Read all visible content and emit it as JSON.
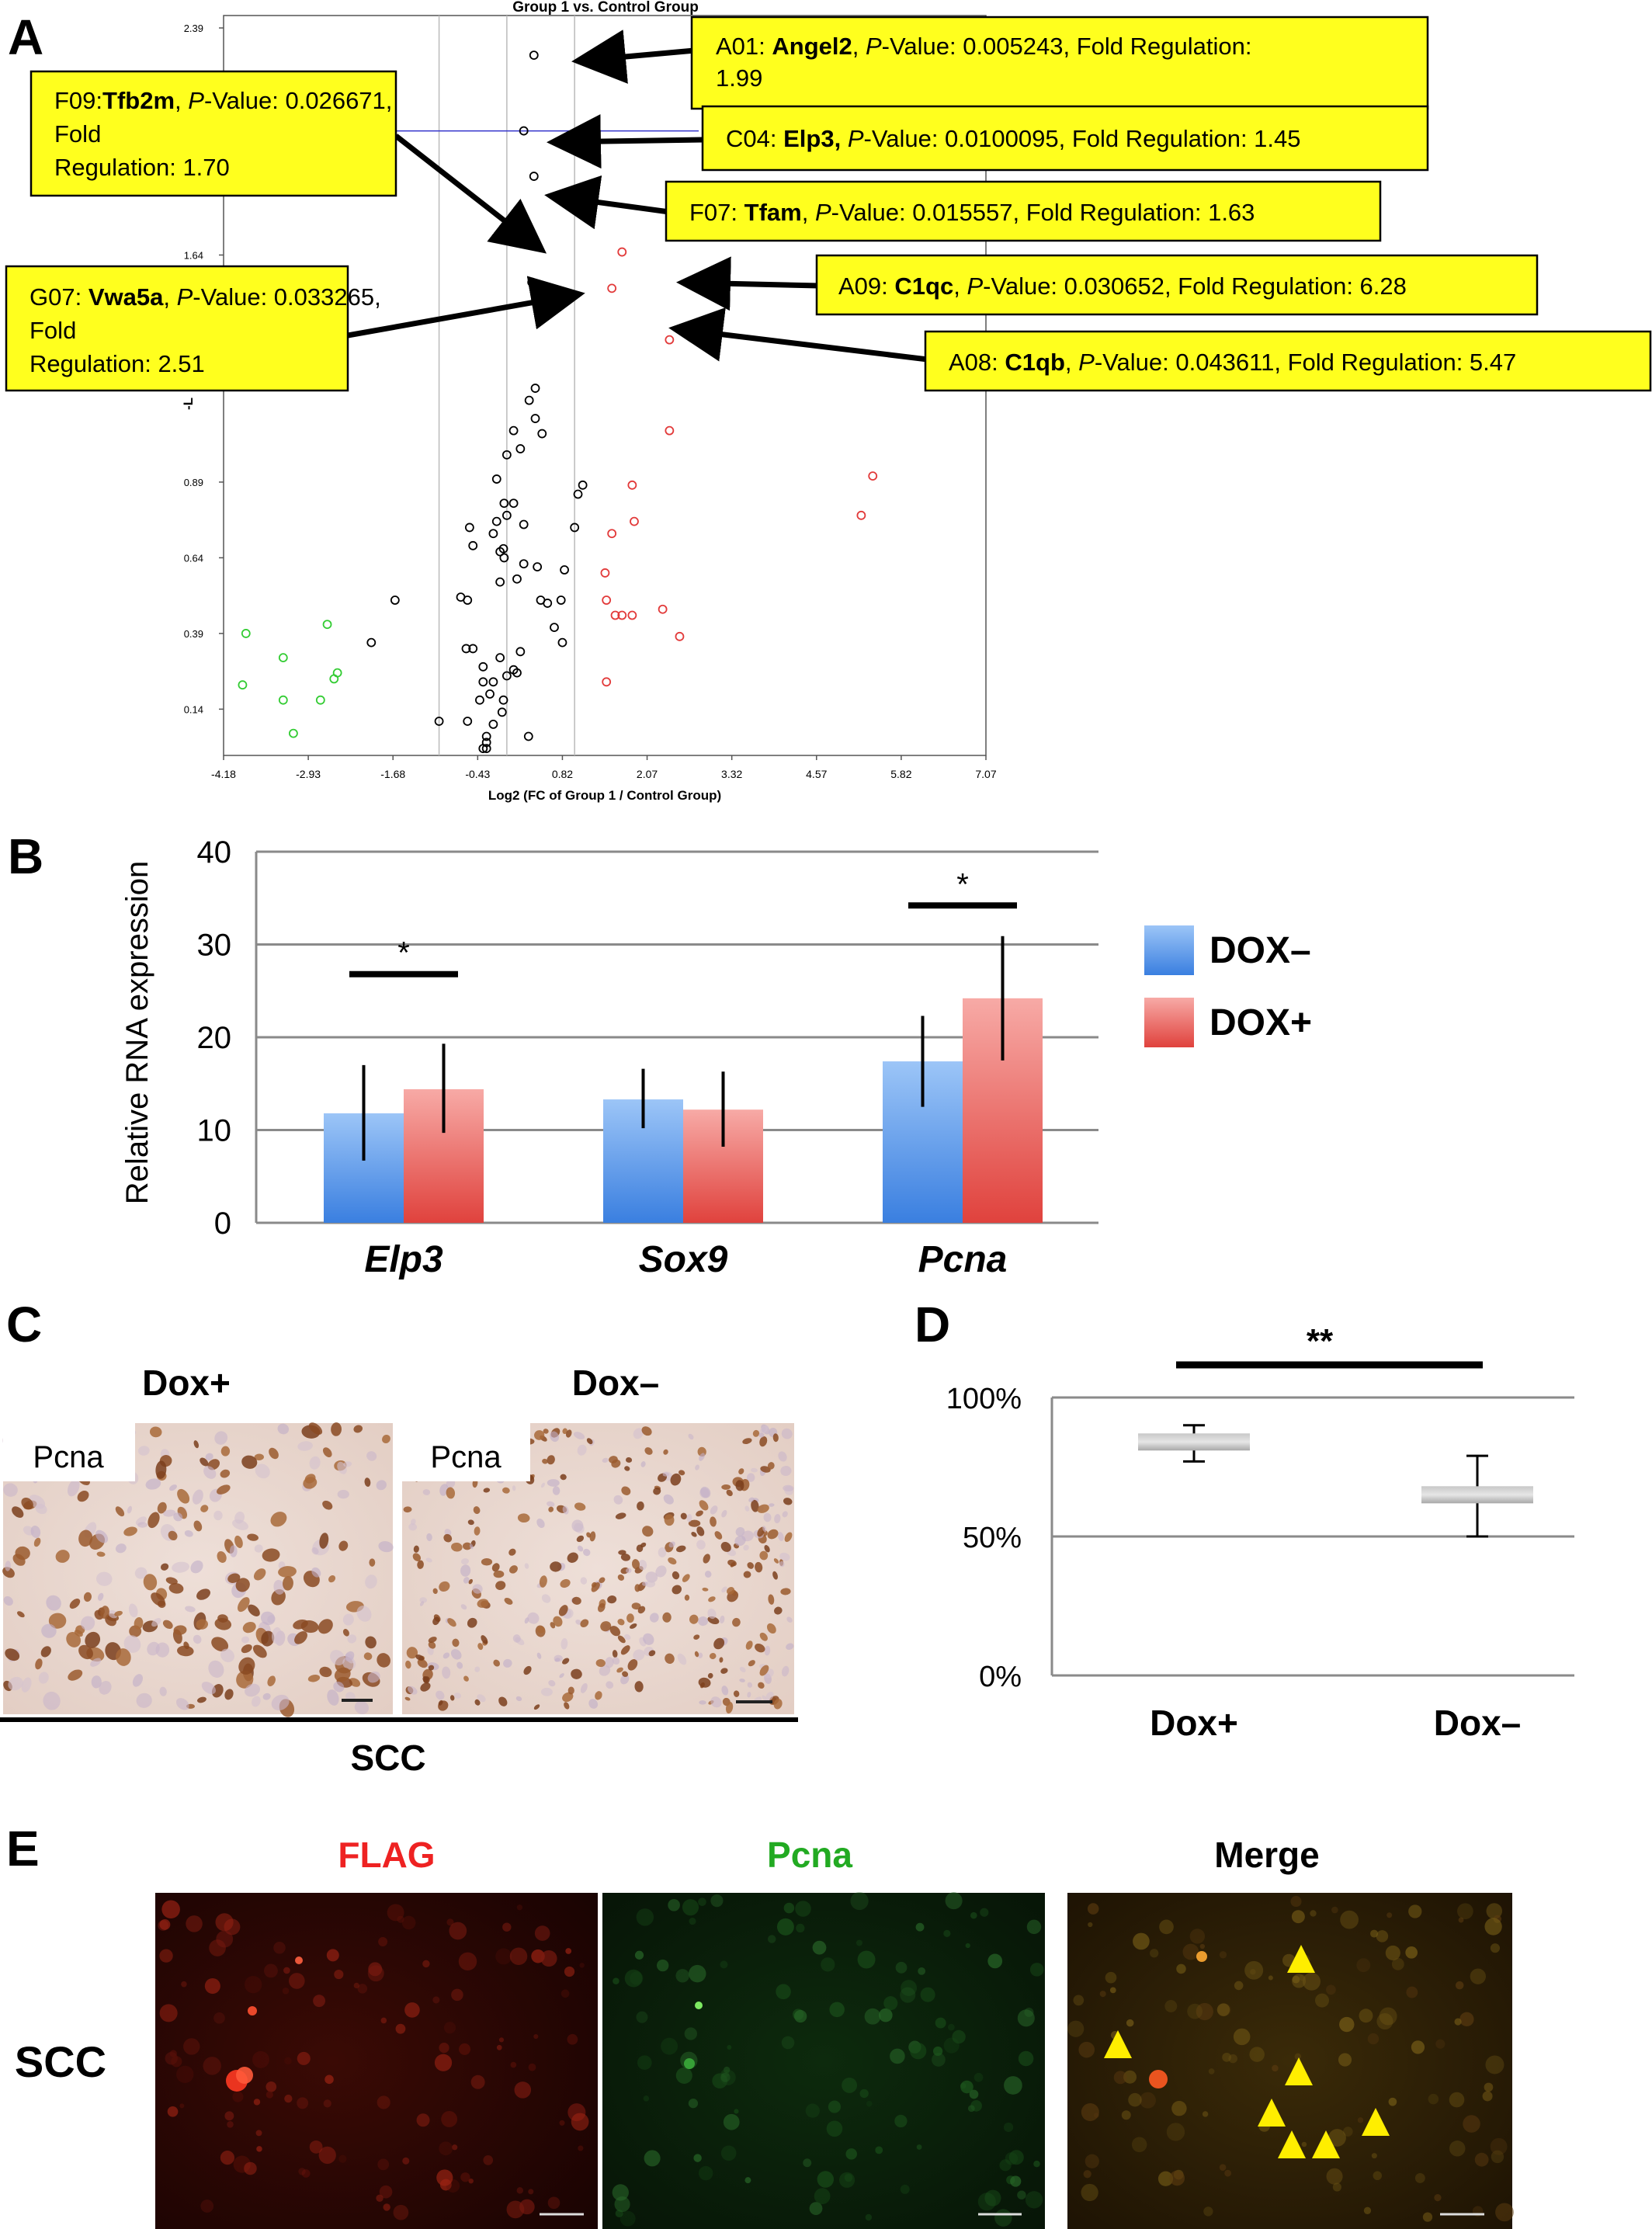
{
  "figure": {
    "panel_letters": {
      "a": "A",
      "b": "B",
      "c": "C",
      "d": "D",
      "e": "E"
    }
  },
  "chart_data": [
    {
      "panel": "A",
      "type": "scatter",
      "title": "Group 1 vs. Control Group",
      "xlabel": "Log2 (FC of Group 1 / Control Group)",
      "ylabel": "-L",
      "xlim": [
        -4.18,
        7.07
      ],
      "ylim": [
        0.0,
        2.39
      ],
      "x_ticks": [
        -4.18,
        -2.93,
        -1.68,
        -0.43,
        0.82,
        2.07,
        3.32,
        4.57,
        5.82,
        7.07
      ],
      "x_tick_labels": [
        "-4.18",
        "-2.93",
        "-1.68",
        "-0.43",
        "0.82",
        "2.07",
        "3.32",
        "4.57",
        "5.82",
        "7.07"
      ],
      "y_ticks": [
        0.14,
        0.39,
        0.64,
        0.89,
        1.64,
        2.39
      ],
      "y_tick_labels": [
        "0.14",
        "0.39",
        "0.64",
        "0.89",
        "1.64",
        "2.39"
      ],
      "vertical_lines": [
        -1.0,
        0.0,
        1.0
      ],
      "horizontal_line_y": 2.05,
      "series": [
        {
          "color": "#000000",
          "points": [
            [
              0.4,
              2.3
            ],
            [
              0.25,
              2.05
            ],
            [
              0.4,
              1.9
            ],
            [
              0.37,
              1.55
            ],
            [
              0.6,
              1.5
            ],
            [
              0.42,
              1.2
            ],
            [
              0.33,
              1.16
            ],
            [
              0.42,
              1.1
            ],
            [
              0.52,
              1.05
            ],
            [
              0.2,
              1.0
            ],
            [
              0.1,
              1.06
            ],
            [
              0.0,
              0.98
            ],
            [
              -0.15,
              0.9
            ],
            [
              -0.04,
              0.82
            ],
            [
              0.1,
              0.82
            ],
            [
              1.12,
              0.88
            ],
            [
              1.05,
              0.85
            ],
            [
              0.0,
              0.78
            ],
            [
              -0.15,
              0.76
            ],
            [
              0.25,
              0.75
            ],
            [
              -0.2,
              0.72
            ],
            [
              -0.55,
              0.74
            ],
            [
              1.0,
              0.74
            ],
            [
              -0.5,
              0.68
            ],
            [
              -0.05,
              0.67
            ],
            [
              -0.1,
              0.66
            ],
            [
              -0.04,
              0.64
            ],
            [
              0.25,
              0.62
            ],
            [
              0.45,
              0.61
            ],
            [
              -0.1,
              0.56
            ],
            [
              0.85,
              0.6
            ],
            [
              0.15,
              0.57
            ],
            [
              0.5,
              0.5
            ],
            [
              0.6,
              0.49
            ],
            [
              0.8,
              0.5
            ],
            [
              -0.68,
              0.51
            ],
            [
              -0.58,
              0.5
            ],
            [
              -1.65,
              0.5
            ],
            [
              0.7,
              0.41
            ],
            [
              0.82,
              0.36
            ],
            [
              -0.6,
              0.34
            ],
            [
              0.2,
              0.33
            ],
            [
              -0.5,
              0.34
            ],
            [
              -0.1,
              0.31
            ],
            [
              -0.35,
              0.28
            ],
            [
              0.1,
              0.27
            ],
            [
              0.0,
              0.25
            ],
            [
              0.15,
              0.26
            ],
            [
              -0.2,
              0.23
            ],
            [
              -0.35,
              0.23
            ],
            [
              -0.25,
              0.19
            ],
            [
              -0.05,
              0.17
            ],
            [
              -0.4,
              0.17
            ],
            [
              -0.07,
              0.13
            ],
            [
              -0.58,
              0.1
            ],
            [
              -1.0,
              0.1
            ],
            [
              -0.2,
              0.09
            ],
            [
              -0.3,
              0.05
            ],
            [
              0.32,
              0.05
            ],
            [
              -0.3,
              0.03
            ],
            [
              -0.35,
              0.01
            ],
            [
              -0.3,
              0.01
            ],
            [
              -2.0,
              0.36
            ]
          ]
        },
        {
          "color": "#e23a3a",
          "points": [
            [
              1.7,
              1.65
            ],
            [
              1.55,
              1.53
            ],
            [
              2.4,
              1.36
            ],
            [
              2.4,
              1.06
            ],
            [
              1.85,
              0.88
            ],
            [
              1.88,
              0.76
            ],
            [
              1.55,
              0.72
            ],
            [
              1.45,
              0.59
            ],
            [
              1.47,
              0.5
            ],
            [
              1.6,
              0.45
            ],
            [
              1.7,
              0.45
            ],
            [
              1.85,
              0.45
            ],
            [
              2.3,
              0.47
            ],
            [
              2.55,
              0.38
            ],
            [
              1.47,
              0.23
            ],
            [
              5.4,
              0.91
            ],
            [
              5.23,
              0.78
            ]
          ]
        },
        {
          "color": "#33cc33",
          "points": [
            [
              -3.85,
              0.39
            ],
            [
              -3.3,
              0.31
            ],
            [
              -2.65,
              0.42
            ],
            [
              -2.5,
              0.26
            ],
            [
              -2.55,
              0.24
            ],
            [
              -3.9,
              0.22
            ],
            [
              -3.3,
              0.17
            ],
            [
              -2.75,
              0.17
            ],
            [
              -3.15,
              0.06
            ]
          ]
        }
      ],
      "annotations": [
        {
          "code": "A01: ",
          "gene": "Angel2",
          "sep": ", ",
          "pvalue_label": "P",
          "rest": "-Value: 0.005243, Fold Regulation: 1.99"
        },
        {
          "code": "C04: ",
          "gene": "Elp3,",
          "sep": " ",
          "pvalue_label": "P",
          "rest": "-Value: 0.0100095, Fold Regulation: 1.45"
        },
        {
          "code": "F07: ",
          "gene": "Tfam",
          "sep": ", ",
          "pvalue_label": "P",
          "rest": "-Value: 0.015557, Fold Regulation: 1.63"
        },
        {
          "code": "A09: ",
          "gene": "C1qc",
          "sep": ", ",
          "pvalue_label": "P",
          "rest": "-Value: 0.030652, Fold Regulation: 6.28"
        },
        {
          "code": "A08: ",
          "gene": "C1qb",
          "sep": ", ",
          "pvalue_label": "P",
          "rest": "-Value: 0.043611, Fold Regulation: 5.47"
        },
        {
          "code": "F09:",
          "gene": "Tfb2m",
          "sep": ", ",
          "pvalue_label": "P",
          "rest": "-Value: 0.026671, Fold Regulation: 1.70"
        },
        {
          "code": "G07: ",
          "gene": "Vwa5a",
          "sep": ", ",
          "pvalue_label": "P",
          "rest": "-Value: 0.033265, Fold Regulation: 2.51"
        }
      ]
    },
    {
      "panel": "B",
      "type": "bar",
      "ylabel": "Relative RNA expression",
      "ylim": [
        0,
        40
      ],
      "y_ticks": [
        0,
        10,
        20,
        30,
        40
      ],
      "categories": [
        "Elp3",
        "Sox9",
        "Pcna"
      ],
      "series": [
        {
          "name": "DOX–",
          "color": "#5b9ae8",
          "values": [
            11.8,
            13.3,
            17.4
          ],
          "err_low": [
            6.7,
            10.2,
            12.5
          ],
          "err_high": [
            17.0,
            16.6,
            22.3
          ]
        },
        {
          "name": "DOX+",
          "color": "#ee6f6b",
          "values": [
            14.4,
            12.2,
            24.2
          ],
          "err_low": [
            9.7,
            8.2,
            17.5
          ],
          "err_high": [
            19.3,
            16.3,
            30.9
          ]
        }
      ],
      "significance": [
        {
          "category": "Elp3",
          "label": "*",
          "y": 26.8
        },
        {
          "category": "Pcna",
          "label": "*",
          "y": 34.2
        }
      ]
    },
    {
      "panel": "D",
      "type": "box",
      "ylim": [
        0,
        100
      ],
      "y_ticks": [
        0,
        50,
        100
      ],
      "y_tick_labels": [
        "0%",
        "50%",
        "100%"
      ],
      "categories": [
        "Dox+",
        "Dox–"
      ],
      "values": [
        84,
        65
      ],
      "err_low": [
        77,
        50
      ],
      "err_high": [
        90,
        79
      ],
      "significance": [
        {
          "label": "**",
          "between": [
            "Dox+",
            "Dox–"
          ]
        }
      ]
    }
  ],
  "panel_c": {
    "titles": [
      "Dox+",
      "Dox–"
    ],
    "inset_labels": [
      "Pcna",
      "Pcna"
    ],
    "footer": "SCC"
  },
  "panel_e": {
    "channels": [
      {
        "label": "FLAG",
        "color": "#ee2222"
      },
      {
        "label": "Pcna",
        "color": "#22aa22"
      },
      {
        "label": "Merge",
        "color": "#000000"
      }
    ],
    "row_label": "SCC"
  }
}
